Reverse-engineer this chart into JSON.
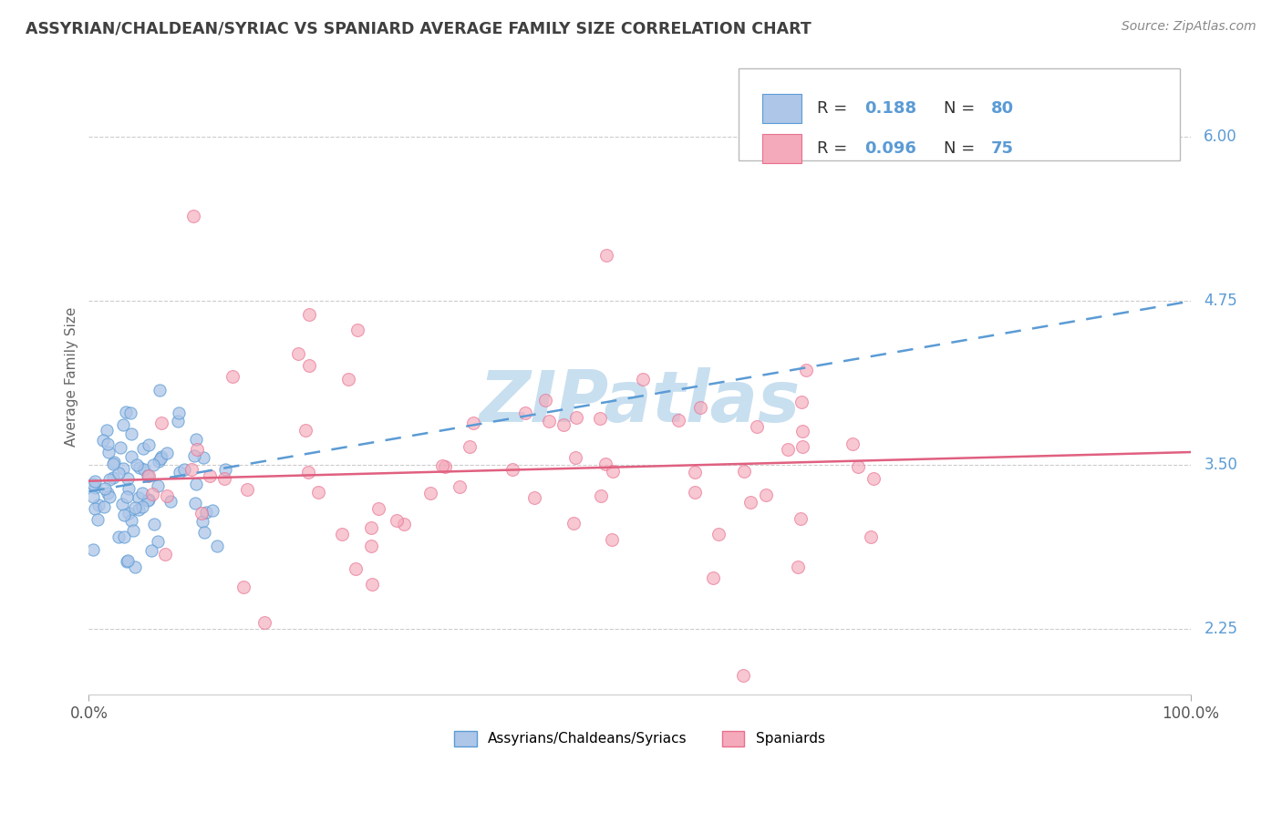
{
  "title": "ASSYRIAN/CHALDEAN/SYRIAC VS SPANIARD AVERAGE FAMILY SIZE CORRELATION CHART",
  "source": "Source: ZipAtlas.com",
  "ylabel": "Average Family Size",
  "xlim": [
    0.0,
    1.0
  ],
  "ylim": [
    1.75,
    6.6
  ],
  "ytick_vals": [
    2.25,
    3.5,
    4.75,
    6.0
  ],
  "yticklabels_color": "#5B9BD5",
  "color_blue_fill": "#AEC6E8",
  "color_blue_edge": "#5B9BD5",
  "color_pink_fill": "#F4AABA",
  "color_pink_edge": "#E87090",
  "color_trend_blue": "#5B9BD5",
  "color_trend_pink": "#E06080",
  "grid_color": "#CCCCCC",
  "bg_color": "#FFFFFF",
  "title_color": "#404040",
  "watermark": "ZIPatlas",
  "watermark_color": "#C8DFF0",
  "trend_blue_y0": 3.3,
  "trend_blue_y1": 4.75,
  "trend_pink_y0": 3.38,
  "trend_pink_y1": 3.6
}
